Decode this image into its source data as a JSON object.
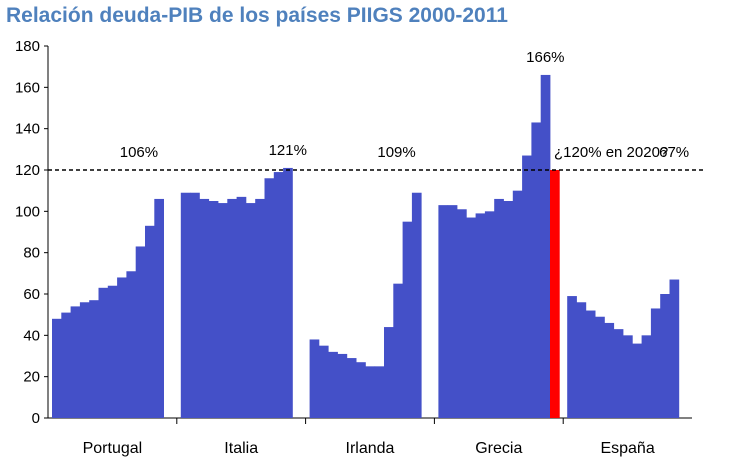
{
  "chart_data": {
    "type": "bar",
    "title": "Relación deuda-PIB de los países PIIGS 2000-2011",
    "xlabel": "",
    "ylabel": "",
    "ylim": [
      0,
      180
    ],
    "yticks": [
      0,
      20,
      40,
      60,
      80,
      100,
      120,
      140,
      160,
      180
    ],
    "grid": false,
    "reference_line": {
      "value": 120,
      "style": "dashed"
    },
    "bar_color": "#4450c8",
    "highlight_color": "#ff0000",
    "groups": [
      {
        "name": "Portugal",
        "values": [
          48,
          51,
          54,
          56,
          57,
          63,
          64,
          68,
          71,
          83,
          93,
          106
        ],
        "label": "106%"
      },
      {
        "name": "Italia",
        "values": [
          109,
          109,
          106,
          105,
          104,
          106,
          107,
          104,
          106,
          116,
          119,
          121
        ],
        "label": "121%"
      },
      {
        "name": "Irlanda",
        "values": [
          38,
          35,
          32,
          31,
          29,
          27,
          25,
          25,
          44,
          65,
          95,
          109
        ],
        "label": "109%"
      },
      {
        "name": "Grecia",
        "values": [
          103,
          103,
          101,
          97,
          99,
          100,
          106,
          105,
          110,
          127,
          143,
          166
        ],
        "label": "166%",
        "projection": {
          "value": 120,
          "label": "¿120% en 2020?"
        }
      },
      {
        "name": "España",
        "values": [
          59,
          56,
          52,
          49,
          46,
          43,
          40,
          36,
          40,
          53,
          60,
          67
        ],
        "label": "67%"
      }
    ]
  }
}
